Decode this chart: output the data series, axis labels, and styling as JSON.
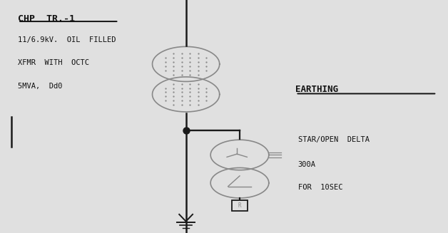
{
  "bg_color": "#e0e0e0",
  "line_color": "#1a1a1a",
  "symbol_color": "#888888",
  "text_color": "#111111",
  "title_label": "CHP  TR.-1",
  "line1": "11/6.9kV.  OIL  FILLED",
  "line2": "XFMR  WITH  OCTC",
  "line3": "5MVA,  Dd0",
  "earthing_label": "EARTHING",
  "spec1": "STAR/OPEN  DELTA",
  "spec2": "300A",
  "spec3": "FOR  10SEC"
}
